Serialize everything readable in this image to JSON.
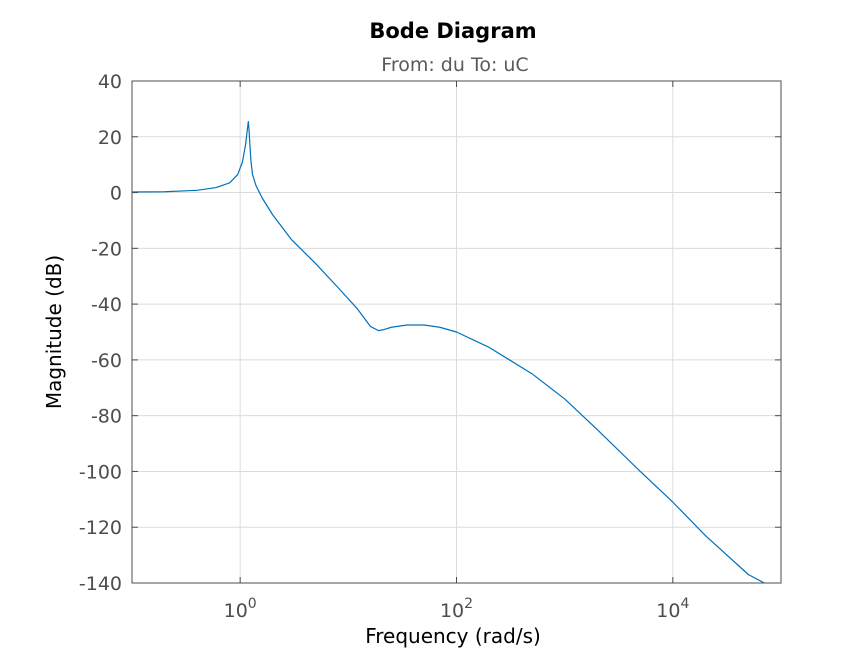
{
  "chart_data": {
    "type": "line",
    "title": "Bode Diagram",
    "subtitle": "From: du  To: uC",
    "xlabel": "Frequency  (rad/s)",
    "ylabel": "Magnitude (dB)",
    "x_scale": "log",
    "xlim": [
      0.1,
      100000
    ],
    "ylim": [
      -140,
      40
    ],
    "grid": true,
    "x_ticks": [
      {
        "value": 1,
        "base": "10",
        "exp": "0"
      },
      {
        "value": 100,
        "base": "10",
        "exp": "2"
      },
      {
        "value": 10000,
        "base": "10",
        "exp": "4"
      }
    ],
    "y_ticks": [
      {
        "value": 40,
        "label": "40"
      },
      {
        "value": 20,
        "label": "20"
      },
      {
        "value": 0,
        "label": "0"
      },
      {
        "value": -20,
        "label": "-20"
      },
      {
        "value": -40,
        "label": "-40"
      },
      {
        "value": -60,
        "label": "-60"
      },
      {
        "value": -80,
        "label": "-80"
      },
      {
        "value": -100,
        "label": "-100"
      },
      {
        "value": -120,
        "label": "-120"
      },
      {
        "value": -140,
        "label": "-140"
      }
    ],
    "series": [
      {
        "color": "#0072bd",
        "x": [
          0.1,
          0.2,
          0.4,
          0.6,
          0.8,
          0.95,
          1.05,
          1.12,
          1.16,
          1.19,
          1.21,
          1.23,
          1.26,
          1.3,
          1.4,
          1.6,
          2,
          3,
          5,
          8,
          12,
          16,
          19,
          21,
          25,
          35,
          50,
          70,
          100,
          200,
          500,
          1000,
          2000,
          5000,
          10000,
          20000,
          50000,
          70000
        ],
        "y": [
          0.2,
          0.3,
          0.8,
          1.8,
          3.5,
          6.5,
          11,
          17,
          22,
          25.5,
          22,
          17,
          11,
          6.5,
          2.5,
          -2,
          -8,
          -17,
          -25.5,
          -34,
          -41.5,
          -48,
          -49.5,
          -49.2,
          -48.3,
          -47.5,
          -47.5,
          -48.3,
          -50,
          -55.5,
          -65,
          -74,
          -85,
          -100,
          -111,
          -123,
          -137,
          -140
        ]
      }
    ]
  }
}
